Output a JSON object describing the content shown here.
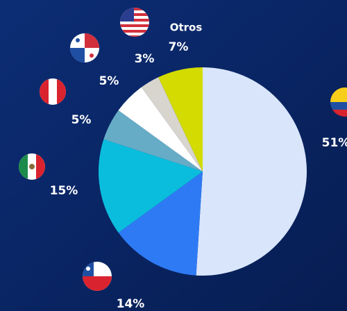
{
  "chart_data": {
    "type": "pie",
    "categories": [
      null,
      null,
      null,
      null,
      null,
      null,
      "Otros"
    ],
    "values": [
      51,
      14,
      15,
      5,
      5,
      3,
      7
    ],
    "value_labels": [
      "51%",
      "14%",
      "15%",
      "5%",
      "5%",
      "3%",
      "7%"
    ],
    "colors": [
      "#d9e5fb",
      "#2e7af4",
      "#0bbddd",
      "#66acc6",
      "#ffffff",
      "#d8d5cf",
      "#d3db00"
    ]
  }
}
